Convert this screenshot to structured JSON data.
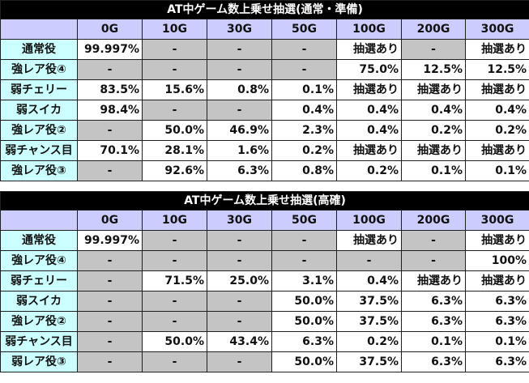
{
  "tables": [
    {
      "title": "AT中ゲーム数上乗せ抽選(通常・準備)",
      "columns": [
        "0G",
        "10G",
        "30G",
        "50G",
        "100G",
        "200G",
        "300G"
      ],
      "rows": [
        {
          "label": "通常役",
          "cells": [
            "99.997%",
            "-",
            "-",
            "-",
            "抽選あり",
            "-",
            "抽選あり"
          ]
        },
        {
          "label": "強レア役④",
          "cells": [
            "-",
            "-",
            "-",
            "-",
            "75.0%",
            "12.5%",
            "12.5%"
          ]
        },
        {
          "label": "弱チェリー",
          "cells": [
            "83.5%",
            "15.6%",
            "0.8%",
            "0.1%",
            "抽選あり",
            "抽選あり",
            "抽選あり"
          ]
        },
        {
          "label": "弱スイカ",
          "cells": [
            "98.4%",
            "-",
            "-",
            "0.4%",
            "0.4%",
            "0.4%",
            "0.4%"
          ]
        },
        {
          "label": "強レア役②",
          "cells": [
            "-",
            "50.0%",
            "46.9%",
            "2.3%",
            "0.4%",
            "0.2%",
            "0.2%"
          ]
        },
        {
          "label": "弱チャンス目",
          "cells": [
            "70.1%",
            "28.1%",
            "1.6%",
            "0.2%",
            "抽選あり",
            "抽選あり",
            "抽選あり"
          ]
        },
        {
          "label": "強レア役③",
          "cells": [
            "-",
            "92.6%",
            "6.3%",
            "0.8%",
            "0.2%",
            "0.1%",
            "0.1%"
          ]
        }
      ]
    },
    {
      "title": "AT中ゲーム数上乗せ抽選(高確)",
      "columns": [
        "0G",
        "10G",
        "30G",
        "50G",
        "100G",
        "200G",
        "300G"
      ],
      "rows": [
        {
          "label": "通常役",
          "cells": [
            "99.997%",
            "-",
            "-",
            "-",
            "抽選あり",
            "-",
            "抽選あり"
          ]
        },
        {
          "label": "強レア役④",
          "cells": [
            "-",
            "-",
            "-",
            "-",
            "-",
            "-",
            "100%"
          ]
        },
        {
          "label": "弱チェリー",
          "cells": [
            "-",
            "71.5%",
            "25.0%",
            "3.1%",
            "0.4%",
            "抽選あり",
            "抽選あり"
          ]
        },
        {
          "label": "弱スイカ",
          "cells": [
            "-",
            "-",
            "-",
            "50.0%",
            "37.5%",
            "6.3%",
            "6.3%"
          ]
        },
        {
          "label": "強レア役②",
          "cells": [
            "-",
            "-",
            "-",
            "50.0%",
            "37.5%",
            "6.3%",
            "6.3%"
          ]
        },
        {
          "label": "弱チャンス目",
          "cells": [
            "-",
            "50.0%",
            "43.4%",
            "6.3%",
            "0.2%",
            "0.1%",
            "0.1%"
          ]
        },
        {
          "label": "弱レア役③",
          "cells": [
            "-",
            "-",
            "-",
            "50.0%",
            "37.5%",
            "6.3%",
            "6.3%"
          ]
        }
      ]
    }
  ]
}
